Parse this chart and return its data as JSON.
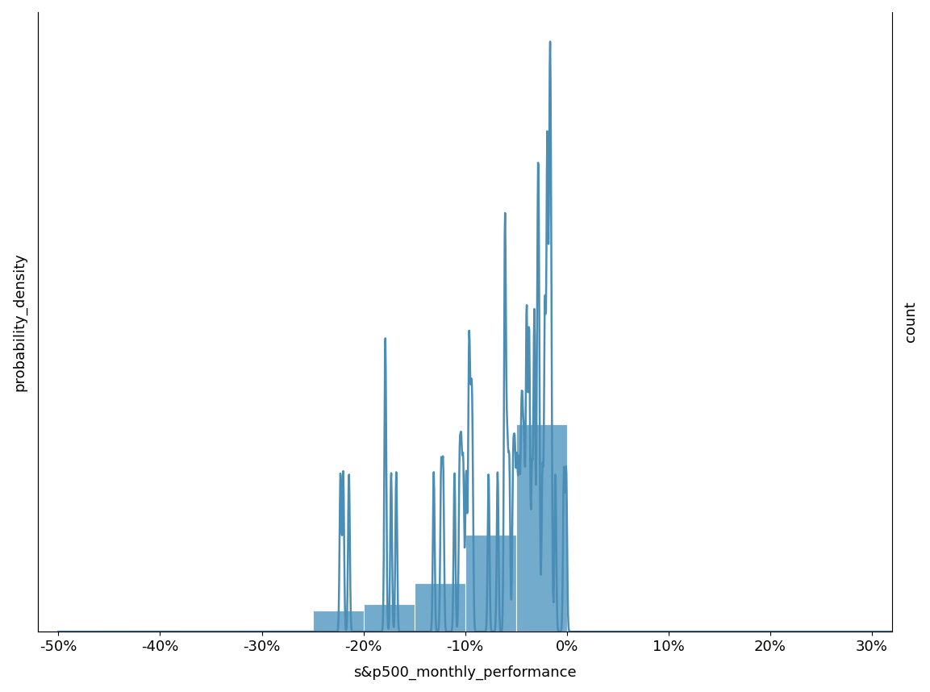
{
  "xlabel": "s&p500_monthly_performance",
  "ylabel_left": "probability_density",
  "ylabel_right": "count",
  "bar_color": "#5B9DC4",
  "line_color": "#4A8DB5",
  "xlim": [
    -0.52,
    0.32
  ],
  "xtick_labels": [
    "-50%",
    "-40%",
    "-30%",
    "-20%",
    "-10%",
    "0%",
    "10%",
    "20%",
    "30%"
  ],
  "xtick_values": [
    -0.5,
    -0.4,
    -0.3,
    -0.2,
    -0.1,
    0.0,
    0.1,
    0.2,
    0.3
  ],
  "background_color": "#ffffff",
  "bin_edges": [
    -0.25,
    -0.2,
    -0.15,
    -0.1,
    -0.05,
    0.0
  ],
  "bin_counts": [
    3,
    4,
    7,
    14,
    30
  ],
  "total_n": 58,
  "kde_bw": 0.015
}
